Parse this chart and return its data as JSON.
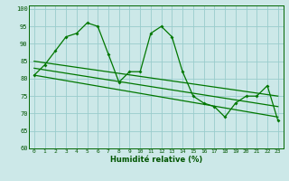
{
  "xlabel": "Humidité relative (%)",
  "bg_color": "#cce8e8",
  "grid_color": "#99cccc",
  "line_color": "#007700",
  "xlim": [
    -0.5,
    23.5
  ],
  "ylim": [
    60,
    101
  ],
  "yticks": [
    60,
    65,
    70,
    75,
    80,
    85,
    90,
    95,
    100
  ],
  "xticks": [
    0,
    1,
    2,
    3,
    4,
    5,
    6,
    7,
    8,
    9,
    10,
    11,
    12,
    13,
    14,
    15,
    16,
    17,
    18,
    19,
    20,
    21,
    22,
    23
  ],
  "series1": [
    81,
    84,
    88,
    92,
    93,
    96,
    95,
    87,
    79,
    82,
    82,
    93,
    95,
    92,
    82,
    75,
    73,
    72,
    69,
    73,
    75,
    75,
    78,
    68
  ],
  "trend1_x": [
    0,
    23
  ],
  "trend1_y": [
    85,
    75
  ],
  "trend2_x": [
    0,
    23
  ],
  "trend2_y": [
    83,
    72
  ],
  "trend3_x": [
    0,
    23
  ],
  "trend3_y": [
    81,
    69
  ]
}
